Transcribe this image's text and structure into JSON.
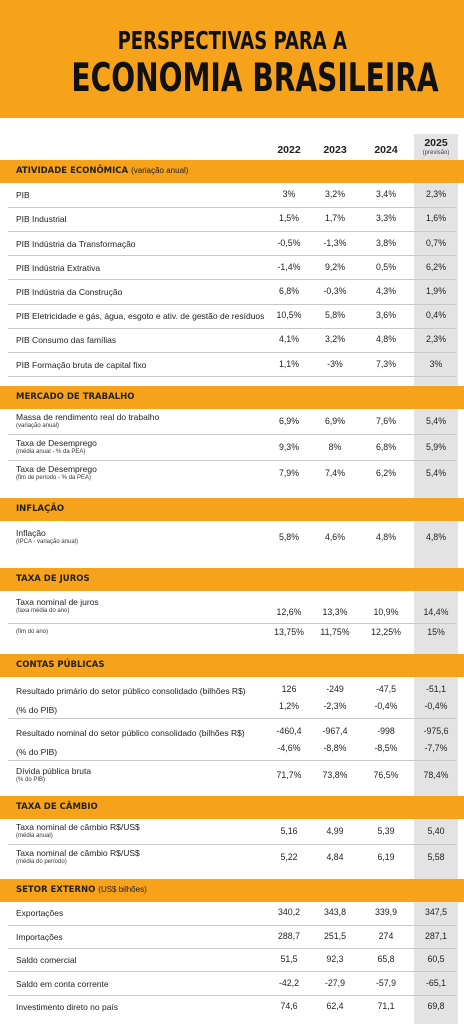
{
  "header": {
    "title_line1": "PERSPECTIVAS PARA A",
    "title_line2": "ECONOMIA BRASILEIRA"
  },
  "columns": [
    {
      "year": "2022"
    },
    {
      "year": "2023"
    },
    {
      "year": "2024"
    },
    {
      "year": "2025",
      "note": "(previsão)"
    }
  ],
  "sections": [
    {
      "title": "ATIVIDADE ECONÔMICA",
      "subtitle": "(variação anual)",
      "rows": [
        {
          "label": "PIB",
          "values": [
            "3%",
            "3,2%",
            "3,4%",
            "2,3%"
          ]
        },
        {
          "label": "PIB Industrial",
          "values": [
            "1,5%",
            "1,7%",
            "3,3%",
            "1,6%"
          ]
        },
        {
          "label": "PIB Indústria da Transformação",
          "values": [
            "-0,5%",
            "-1,3%",
            "3,8%",
            "0,7%"
          ]
        },
        {
          "label": "PIB Indústria Extrativa",
          "values": [
            "-1,4%",
            "9,2%",
            "0,5%",
            "6,2%"
          ]
        },
        {
          "label": "PIB Indústria da Construção",
          "values": [
            "6,8%",
            "-0,3%",
            "4,3%",
            "1,9%"
          ]
        },
        {
          "label": "PIB Eletricidade e gás, água, esgoto e ativ. de gestão de resíduos",
          "values": [
            "10,5%",
            "5,8%",
            "3,6%",
            "0,4%"
          ]
        },
        {
          "label": "PIB Consumo das famílias",
          "values": [
            "4,1%",
            "3,2%",
            "4,8%",
            "2,3%"
          ]
        },
        {
          "label": "PIB Formação bruta de capital fixo",
          "values": [
            "1,1%",
            "-3%",
            "7,3%",
            "3%"
          ]
        }
      ]
    },
    {
      "title": "MERCADO DE TRABALHO",
      "rows": [
        {
          "label": "Massa de rendimento real do trabalho",
          "note": "(variação anual)",
          "values": [
            "6,9%",
            "6,9%",
            "7,6%",
            "5,4%"
          ]
        },
        {
          "label": "Taxa de Desemprego",
          "note": "(média anual - % da PEA)",
          "values": [
            "9,3%",
            "8%",
            "6,8%",
            "5,9%"
          ]
        },
        {
          "label": "Taxa de Desemprego",
          "note": "(fim de período - % da PEA)",
          "values": [
            "7,9%",
            "7,4%",
            "6,2%",
            "5,4%"
          ]
        }
      ]
    },
    {
      "title": "INFLAÇÃO",
      "rows": [
        {
          "label": "Inflação",
          "note": "(IPCA - variação anual)",
          "values": [
            "5,8%",
            "4,6%",
            "4,8%",
            "4,8%"
          ]
        }
      ]
    },
    {
      "title": "TAXA DE JUROS",
      "rows": [
        {
          "label": "Taxa nominal de juros",
          "note": "(taxa média do ano)",
          "values": [
            "12,6%",
            "13,3%",
            "10,9%",
            "14,4%"
          ]
        },
        {
          "note": "(fim do ano)",
          "values": [
            "13,75%",
            "11,75%",
            "12,25%",
            "15%"
          ]
        }
      ]
    },
    {
      "title": "CONTAS PÚBLICAS",
      "rows": [
        {
          "label": "Resultado primário do setor público consolidado  (bilhões R$)",
          "values": [
            "126",
            "-249",
            "-47,5",
            "-51,1"
          ],
          "sub_label": "(% do PIB)",
          "sub_values": [
            "1,2%",
            "-2,3%",
            "-0,4%",
            "-0,4%"
          ]
        },
        {
          "label": "Resultado nominal do setor público consolidado (bilhões R$)",
          "values": [
            "-460,4",
            "-967,4",
            "-998",
            "-975,6"
          ],
          "sub_label": "(% do PIB)",
          "sub_values": [
            "-4,6%",
            "-8,8%",
            "-8,5%",
            "-7,7%"
          ]
        },
        {
          "label": "Dívida pública bruta",
          "note": "(% do PIB)",
          "values": [
            "71,7%",
            "73,8%",
            "76,5%",
            "78,4%"
          ]
        }
      ]
    },
    {
      "title": "TAXA DE CÂMBIO",
      "rows": [
        {
          "label": "Taxa nominal de câmbio R$/US$",
          "note": "(média anual)",
          "values": [
            "5,16",
            "4,99",
            "5,39",
            "5,40"
          ]
        },
        {
          "label": "Taxa nominal de câmbio R$/US$",
          "note": "(média do período)",
          "values": [
            "5,22",
            "4,84",
            "6,19",
            "5,58"
          ]
        }
      ]
    },
    {
      "title": "SETOR EXTERNO",
      "subtitle": "(US$ bilhões)",
      "rows": [
        {
          "label": "Exportações",
          "values": [
            "340,2",
            "343,8",
            "339,9",
            "347,5"
          ]
        },
        {
          "label": "Importações",
          "values": [
            "288,7",
            "251,5",
            "274",
            "287,1"
          ]
        },
        {
          "label": "Saldo comercial",
          "values": [
            "51,5",
            "92,3",
            "65,8",
            "60,5"
          ]
        },
        {
          "label": "Saldo em conta corrente",
          "values": [
            "-42,2",
            "-27,9",
            "-57,9",
            "-65,1"
          ]
        },
        {
          "label": "Investimento direto no país",
          "values": [
            "74,6",
            "62,4",
            "71,1",
            "69,8"
          ]
        }
      ]
    }
  ]
}
